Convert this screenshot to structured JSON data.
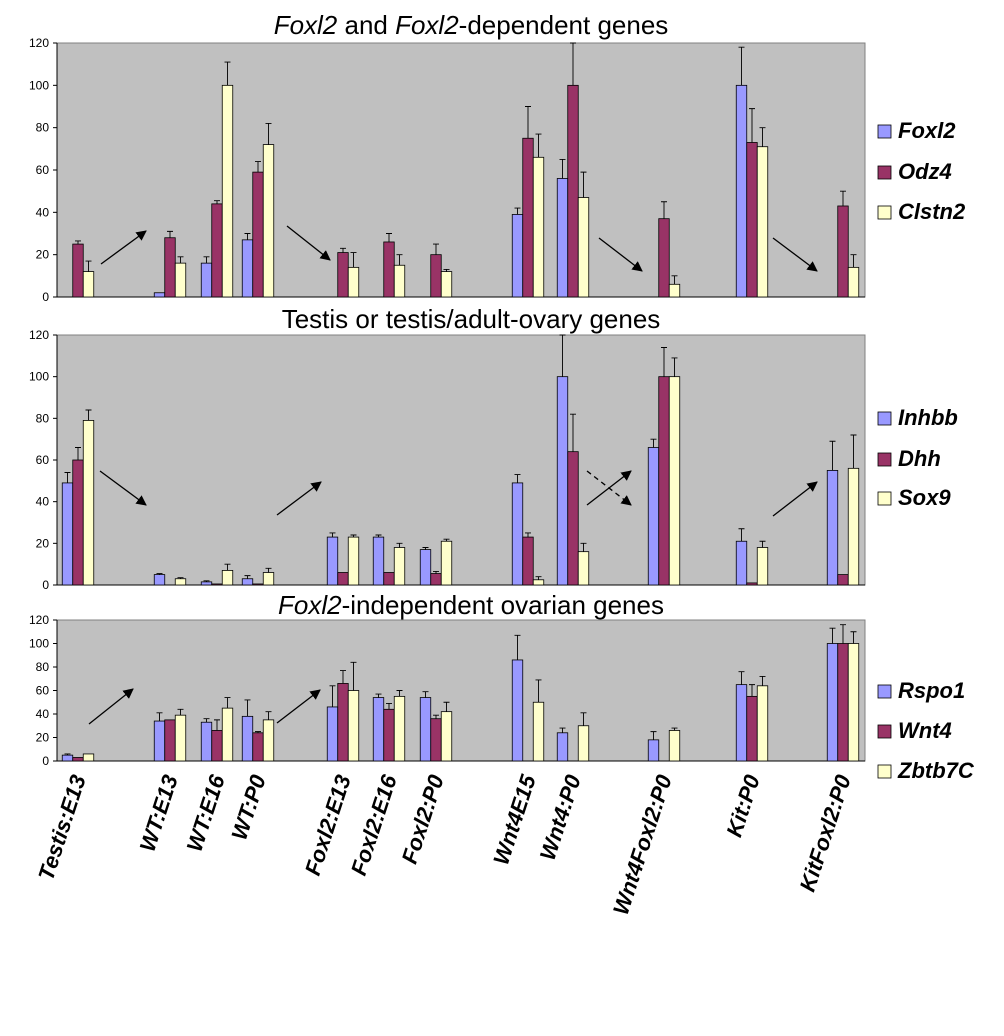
{
  "chart_data": [
    {
      "type": "bar",
      "title_parts": [
        {
          "text": "Foxl2",
          "italic": true
        },
        {
          "text": " and ",
          "italic": false
        },
        {
          "text": "Foxl2",
          "italic": true
        },
        {
          "text": "-dependent genes",
          "italic": false
        }
      ],
      "ylim": [
        0,
        120
      ],
      "yticks": [
        "0",
        "20",
        "40",
        "60",
        "80",
        "100",
        "120"
      ],
      "grid": false,
      "legend_position": "right",
      "series": [
        {
          "name": "Foxl2",
          "color": "#9999ff",
          "values": [
            0,
            2,
            16,
            27,
            0,
            0,
            0,
            39,
            56,
            0,
            100,
            0
          ],
          "errors": [
            0,
            0,
            3,
            3,
            0,
            0,
            0,
            3,
            9,
            0,
            18,
            0
          ]
        },
        {
          "name": "Odz4",
          "color": "#993366",
          "values": [
            25,
            28,
            44,
            59,
            21,
            26,
            20,
            75,
            100,
            37,
            73,
            43
          ],
          "errors": [
            1.5,
            3,
            1.5,
            5,
            2,
            4,
            5,
            15,
            20,
            8,
            16,
            7
          ]
        },
        {
          "name": "Clstn2",
          "color": "#ffffcc",
          "values": [
            12,
            16,
            100,
            72,
            14,
            15,
            12,
            66,
            47,
            6,
            71,
            14
          ],
          "errors": [
            5,
            3,
            11,
            10,
            7,
            5,
            1,
            11,
            12,
            4,
            9,
            6
          ]
        }
      ]
    },
    {
      "type": "bar",
      "title_parts": [
        {
          "text": "Testis or testis/adult-ovary genes",
          "italic": false
        }
      ],
      "ylim": [
        0,
        120
      ],
      "yticks": [
        "0",
        "20",
        "40",
        "60",
        "80",
        "100",
        "120"
      ],
      "grid": false,
      "legend_position": "right",
      "series": [
        {
          "name": "Inhbb",
          "color": "#9999ff",
          "values": [
            49,
            5,
            1.5,
            3,
            23,
            23,
            17,
            49,
            100,
            66,
            21,
            55
          ],
          "errors": [
            5,
            0.5,
            0.5,
            1.5,
            2,
            1,
            1,
            4,
            20,
            4,
            6,
            14
          ]
        },
        {
          "name": "Dhh",
          "color": "#993366",
          "values": [
            60,
            0,
            0.5,
            0.5,
            6,
            6,
            5.5,
            23,
            64,
            100,
            1,
            5
          ],
          "errors": [
            6,
            0,
            0,
            0,
            0,
            0,
            1,
            2,
            18,
            14,
            0,
            0
          ]
        },
        {
          "name": "Sox9",
          "color": "#ffffcc",
          "values": [
            79,
            3,
            7,
            6,
            23,
            18,
            21,
            2.5,
            16,
            100,
            18,
            56
          ],
          "errors": [
            5,
            0.5,
            3,
            2,
            1,
            2,
            1,
            1.5,
            4,
            9,
            3,
            16
          ]
        }
      ]
    },
    {
      "type": "bar",
      "title_parts": [
        {
          "text": "Foxl2",
          "italic": true
        },
        {
          "text": "-independent ovarian genes",
          "italic": false
        }
      ],
      "ylim": [
        0,
        120
      ],
      "yticks": [
        "0",
        "20",
        "40",
        "60",
        "80",
        "100",
        "120"
      ],
      "grid": false,
      "legend_position": "right",
      "series": [
        {
          "name": "Rspo1",
          "color": "#9999ff",
          "values": [
            5,
            34,
            33,
            38,
            46,
            54,
            54,
            86,
            24,
            18,
            65,
            100
          ],
          "errors": [
            1,
            7,
            3,
            14,
            18,
            3,
            5,
            21,
            4,
            7,
            11,
            13
          ]
        },
        {
          "name": "Wnt4",
          "color": "#993366",
          "values": [
            3,
            35,
            26,
            24,
            66,
            44,
            36,
            0,
            0,
            0,
            55,
            100
          ],
          "errors": [
            0,
            0,
            9,
            1,
            11,
            5,
            3,
            0,
            0,
            0,
            10,
            16
          ]
        },
        {
          "name": "Zbtb7C",
          "color": "#ffffcc",
          "values": [
            6,
            39,
            45,
            35,
            60,
            55,
            42,
            50,
            30,
            26,
            64,
            100
          ],
          "errors": [
            0,
            5,
            9,
            7,
            24,
            5,
            8,
            19,
            11,
            2,
            8,
            10
          ]
        }
      ]
    }
  ],
  "categories": [
    "Testis:E13",
    "WT:E13",
    "WT:E16",
    "WT:P0",
    "Foxl2:E13",
    "Foxl2:E16",
    "Foxl2:P0",
    "Wnt4E15",
    "Wnt4:P0",
    "Wnt4Foxl2:P0",
    "Kit:P0",
    "KitFoxl2:P0"
  ],
  "colors": {
    "plot_background": "#c0c0c0",
    "foreground": "#000000"
  }
}
